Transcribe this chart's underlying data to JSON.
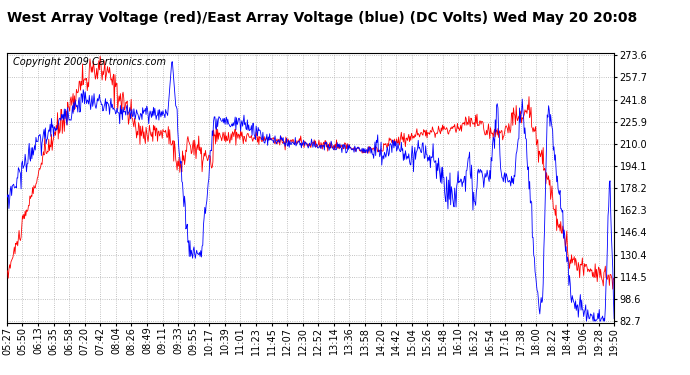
{
  "title": "West Array Voltage (red)/East Array Voltage (blue) (DC Volts) Wed May 20 20:08",
  "copyright": "Copyright 2009 Cartronics.com",
  "ylabel_right_ticks": [
    273.6,
    257.7,
    241.8,
    225.9,
    210.0,
    194.1,
    178.2,
    162.3,
    146.4,
    130.4,
    114.5,
    98.6,
    82.7
  ],
  "ymin": 82.7,
  "ymax": 273.6,
  "xtick_labels": [
    "05:27",
    "05:50",
    "06:13",
    "06:35",
    "06:58",
    "07:20",
    "07:42",
    "08:04",
    "08:26",
    "08:49",
    "09:11",
    "09:33",
    "09:55",
    "10:17",
    "10:39",
    "11:01",
    "11:23",
    "11:45",
    "12:07",
    "12:30",
    "12:52",
    "13:14",
    "13:36",
    "13:58",
    "14:20",
    "14:42",
    "15:04",
    "15:26",
    "15:48",
    "16:10",
    "16:32",
    "16:54",
    "17:16",
    "17:38",
    "18:00",
    "18:22",
    "18:44",
    "19:06",
    "19:28",
    "19:50"
  ],
  "bg_color": "#ffffff",
  "plot_bg_color": "#ffffff",
  "grid_color": "#b0b0b0",
  "red_color": "#ff0000",
  "blue_color": "#0000ff",
  "title_fontsize": 10,
  "copyright_fontsize": 7,
  "tick_fontsize": 7
}
